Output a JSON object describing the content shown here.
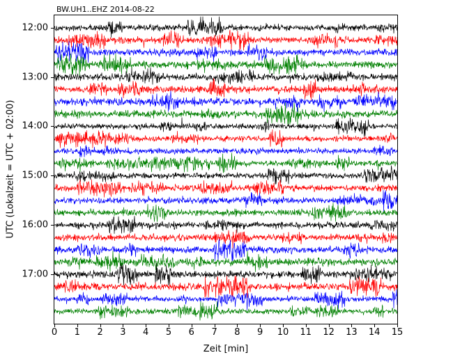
{
  "figure": {
    "title": "BW.UH1..EHZ 2014-08-22",
    "xlabel": "Zeit  [min]",
    "ylabel": "UTC (Lokalzeit = UTC + 02:00)"
  },
  "chart_data": {
    "type": "line",
    "subtype": "seismogram-dayplot",
    "title": "BW.UH1..EHZ 2014-08-22",
    "xlabel": "Zeit  [min]",
    "ylabel": "UTC (Lokalzeit = UTC + 02:00)",
    "xlim": [
      0,
      15
    ],
    "minutes_per_line": 15,
    "grid": false,
    "legend": null,
    "x_tick_labels": [
      "0",
      "1",
      "2",
      "3",
      "4",
      "5",
      "6",
      "7",
      "8",
      "9",
      "10",
      "11",
      "12",
      "13",
      "14",
      "15"
    ],
    "y_tick_labels": [
      "12:00",
      "13:00",
      "14:00",
      "15:00",
      "16:00",
      "17:00"
    ],
    "trace_color_cycle": [
      "#000000",
      "#ff0000",
      "#0000ff",
      "#008000"
    ],
    "traces": [
      {
        "start_time": "12:00",
        "color": "#000000"
      },
      {
        "start_time": "12:15",
        "color": "#ff0000"
      },
      {
        "start_time": "12:30",
        "color": "#0000ff"
      },
      {
        "start_time": "12:45",
        "color": "#008000"
      },
      {
        "start_time": "13:00",
        "color": "#000000"
      },
      {
        "start_time": "13:15",
        "color": "#ff0000"
      },
      {
        "start_time": "13:30",
        "color": "#0000ff"
      },
      {
        "start_time": "13:45",
        "color": "#008000"
      },
      {
        "start_time": "14:00",
        "color": "#000000"
      },
      {
        "start_time": "14:15",
        "color": "#ff0000"
      },
      {
        "start_time": "14:30",
        "color": "#0000ff"
      },
      {
        "start_time": "14:45",
        "color": "#008000"
      },
      {
        "start_time": "15:00",
        "color": "#000000"
      },
      {
        "start_time": "15:15",
        "color": "#ff0000"
      },
      {
        "start_time": "15:30",
        "color": "#0000ff"
      },
      {
        "start_time": "15:45",
        "color": "#008000"
      },
      {
        "start_time": "16:00",
        "color": "#000000"
      },
      {
        "start_time": "16:15",
        "color": "#ff0000"
      },
      {
        "start_time": "16:30",
        "color": "#0000ff"
      },
      {
        "start_time": "16:45",
        "color": "#008000"
      },
      {
        "start_time": "17:00",
        "color": "#000000"
      },
      {
        "start_time": "17:15",
        "color": "#ff0000"
      },
      {
        "start_time": "17:30",
        "color": "#0000ff"
      },
      {
        "start_time": "17:45",
        "color": "#008000"
      }
    ],
    "description": "Seismogram day plot: 24 continuous noise traces, one per 15-minute interval, colors cycling black/red/blue/green; each hour label marks the black trace starting that hour."
  }
}
